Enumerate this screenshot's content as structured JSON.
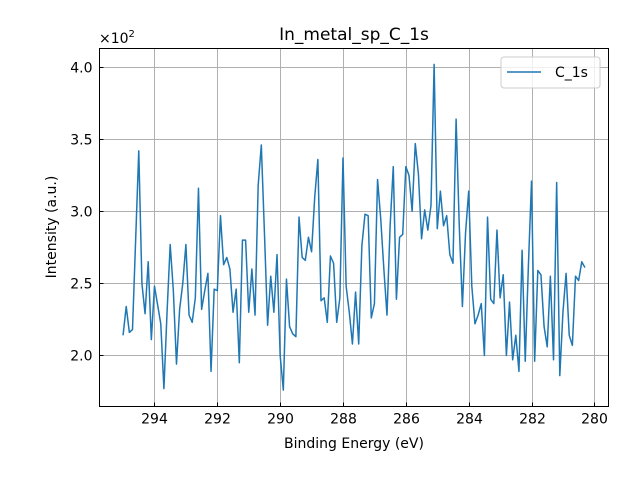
{
  "chart_data": {
    "type": "line",
    "title": "In_metal_sp_C_1s",
    "xlabel": "Binding Energy (eV)",
    "ylabel": "Intensity (a.u.)",
    "y_multiplier_label": "×10",
    "y_multiplier_exponent": "2",
    "xlim": [
      295.75,
      279.55
    ],
    "ylim": [
      1.646,
      4.13
    ],
    "x_reversed": true,
    "grid": true,
    "legend_position": "top-right",
    "x_ticks": [
      294,
      292,
      290,
      288,
      286,
      284,
      282,
      280
    ],
    "x_tick_labels": [
      "294",
      "292",
      "290",
      "288",
      "286",
      "284",
      "282",
      "280"
    ],
    "y_ticks": [
      2.0,
      2.5,
      3.0,
      3.5,
      4.0
    ],
    "y_tick_labels": [
      "2.0",
      "2.5",
      "3.0",
      "3.5",
      "4.0"
    ],
    "series": [
      {
        "name": "C_1s",
        "color": "#1f77b4",
        "x_start": 295.0,
        "x_step": -0.1,
        "values": [
          2.14,
          2.34,
          2.16,
          2.18,
          2.8,
          3.42,
          2.5,
          2.29,
          2.65,
          2.11,
          2.48,
          2.35,
          2.22,
          1.77,
          2.3,
          2.77,
          2.45,
          1.94,
          2.32,
          2.5,
          2.77,
          2.28,
          2.23,
          2.4,
          3.16,
          2.32,
          2.45,
          2.57,
          1.89,
          2.46,
          2.45,
          2.97,
          2.63,
          2.68,
          2.6,
          2.3,
          2.46,
          1.95,
          2.8,
          2.8,
          2.3,
          2.6,
          2.28,
          3.18,
          3.46,
          2.85,
          2.21,
          2.55,
          2.3,
          2.7,
          2.0,
          1.76,
          2.53,
          2.2,
          2.15,
          2.13,
          2.96,
          2.68,
          2.66,
          2.82,
          2.72,
          3.1,
          3.36,
          2.38,
          2.4,
          2.23,
          2.69,
          2.64,
          2.23,
          2.4,
          3.37,
          2.48,
          2.3,
          2.08,
          2.44,
          2.08,
          2.76,
          2.98,
          2.97,
          2.26,
          2.36,
          3.22,
          2.95,
          2.6,
          2.28,
          2.9,
          3.31,
          2.39,
          2.82,
          2.84,
          3.31,
          3.25,
          3.0,
          3.47,
          3.26,
          2.81,
          3.01,
          2.87,
          3.04,
          4.02,
          2.88,
          3.14,
          2.9,
          2.97,
          2.7,
          2.64,
          3.64,
          2.9,
          2.34,
          2.85,
          3.14,
          2.48,
          2.22,
          2.28,
          2.36,
          2.0,
          2.96,
          2.39,
          2.36,
          2.87,
          2.4,
          2.56,
          2.0,
          2.37,
          1.97,
          2.14,
          1.89,
          2.73,
          1.96,
          2.62,
          3.21,
          1.96,
          2.59,
          2.56,
          2.2,
          2.06,
          2.55,
          1.97,
          3.2,
          1.86,
          2.3,
          2.57,
          2.14,
          2.07,
          2.55,
          2.52,
          2.65,
          2.61
        ]
      }
    ]
  }
}
